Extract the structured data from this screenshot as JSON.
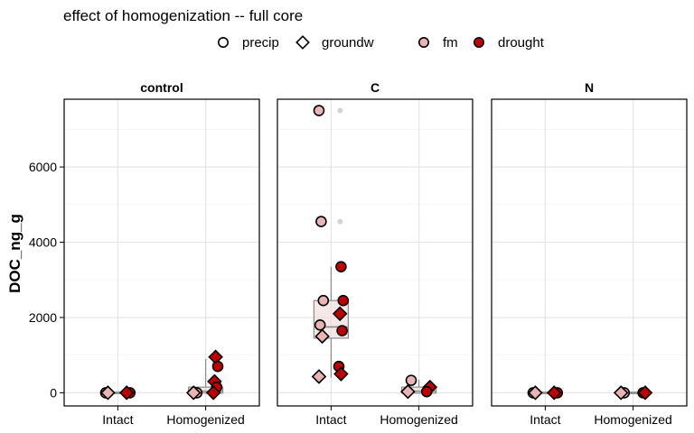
{
  "chart_data": {
    "type": "scatter",
    "title": "effect of homogenization -- full core",
    "ylabel": "DOC_ng_g",
    "xlabel": "",
    "ylim": [
      -350,
      7800
    ],
    "yticks": [
      0,
      2000,
      4000,
      6000
    ],
    "categories": [
      "Intact",
      "Homogenized"
    ],
    "panels": [
      "control",
      "C",
      "N"
    ],
    "legend": {
      "placement": "top",
      "shape": [
        "precip",
        "groundw"
      ],
      "fill": [
        "fm",
        "drought"
      ]
    },
    "colors": {
      "fm": "#e8b4b4",
      "drought": "#c00000",
      "box_fill": "#f0d8d8",
      "faint_point": "#d3d3d3"
    },
    "boxes": [
      {
        "panel": "control",
        "category": "Intact",
        "q1": -5,
        "median": 5,
        "q3": 15,
        "low": -10,
        "high": 20
      },
      {
        "panel": "control",
        "category": "Homogenized",
        "q1": -10,
        "median": 40,
        "q3": 150,
        "low": -20,
        "high": 900
      },
      {
        "panel": "C",
        "category": "Intact",
        "q1": 1450,
        "median": 1750,
        "q3": 2450,
        "low": 400,
        "high": 3350
      },
      {
        "panel": "C",
        "category": "Homogenized",
        "q1": -10,
        "median": 40,
        "q3": 150,
        "low": -20,
        "high": 350
      },
      {
        "panel": "N",
        "category": "Intact",
        "q1": -5,
        "median": 5,
        "q3": 15,
        "low": -10,
        "high": 20
      },
      {
        "panel": "N",
        "category": "Homogenized",
        "q1": -5,
        "median": 5,
        "q3": 15,
        "low": -10,
        "high": 20
      }
    ],
    "faint_points": [
      {
        "panel": "control",
        "category": "Homogenized",
        "y": 900
      },
      {
        "panel": "control",
        "category": "Homogenized",
        "y": 800
      },
      {
        "panel": "C",
        "category": "Intact",
        "y": 7500
      },
      {
        "panel": "C",
        "category": "Intact",
        "y": 4550
      }
    ],
    "points": [
      {
        "panel": "control",
        "category": "Intact",
        "moisture": "fm",
        "source": "precip",
        "y": 0
      },
      {
        "panel": "control",
        "category": "Intact",
        "moisture": "fm",
        "source": "groundw",
        "y": 0
      },
      {
        "panel": "control",
        "category": "Intact",
        "moisture": "drought",
        "source": "precip",
        "y": 0
      },
      {
        "panel": "control",
        "category": "Intact",
        "moisture": "drought",
        "source": "groundw",
        "y": 0
      },
      {
        "panel": "control",
        "category": "Homogenized",
        "moisture": "fm",
        "source": "precip",
        "y": 0
      },
      {
        "panel": "control",
        "category": "Homogenized",
        "moisture": "fm",
        "source": "groundw",
        "y": 0
      },
      {
        "panel": "control",
        "category": "Homogenized",
        "moisture": "drought",
        "source": "groundw",
        "y": 950
      },
      {
        "panel": "control",
        "category": "Homogenized",
        "moisture": "drought",
        "source": "precip",
        "y": 700
      },
      {
        "panel": "control",
        "category": "Homogenized",
        "moisture": "drought",
        "source": "groundw",
        "y": 300
      },
      {
        "panel": "control",
        "category": "Homogenized",
        "moisture": "drought",
        "source": "precip",
        "y": 150
      },
      {
        "panel": "control",
        "category": "Homogenized",
        "moisture": "drought",
        "source": "groundw",
        "y": 0
      },
      {
        "panel": "C",
        "category": "Intact",
        "moisture": "fm",
        "source": "precip",
        "y": 7500
      },
      {
        "panel": "C",
        "category": "Intact",
        "moisture": "fm",
        "source": "precip",
        "y": 4550
      },
      {
        "panel": "C",
        "category": "Intact",
        "moisture": "fm",
        "source": "precip",
        "y": 2450
      },
      {
        "panel": "C",
        "category": "Intact",
        "moisture": "fm",
        "source": "precip",
        "y": 1800
      },
      {
        "panel": "C",
        "category": "Intact",
        "moisture": "fm",
        "source": "groundw",
        "y": 1500
      },
      {
        "panel": "C",
        "category": "Intact",
        "moisture": "fm",
        "source": "groundw",
        "y": 430
      },
      {
        "panel": "C",
        "category": "Intact",
        "moisture": "drought",
        "source": "precip",
        "y": 3350
      },
      {
        "panel": "C",
        "category": "Intact",
        "moisture": "drought",
        "source": "precip",
        "y": 2450
      },
      {
        "panel": "C",
        "category": "Intact",
        "moisture": "drought",
        "source": "groundw",
        "y": 2100
      },
      {
        "panel": "C",
        "category": "Intact",
        "moisture": "drought",
        "source": "precip",
        "y": 1650
      },
      {
        "panel": "C",
        "category": "Intact",
        "moisture": "drought",
        "source": "precip",
        "y": 700
      },
      {
        "panel": "C",
        "category": "Intact",
        "moisture": "drought",
        "source": "groundw",
        "y": 500
      },
      {
        "panel": "C",
        "category": "Homogenized",
        "moisture": "fm",
        "source": "precip",
        "y": 330
      },
      {
        "panel": "C",
        "category": "Homogenized",
        "moisture": "fm",
        "source": "groundw",
        "y": 30
      },
      {
        "panel": "C",
        "category": "Homogenized",
        "moisture": "drought",
        "source": "groundw",
        "y": 150
      },
      {
        "panel": "C",
        "category": "Homogenized",
        "moisture": "drought",
        "source": "precip",
        "y": 30
      },
      {
        "panel": "N",
        "category": "Intact",
        "moisture": "fm",
        "source": "precip",
        "y": 0
      },
      {
        "panel": "N",
        "category": "Intact",
        "moisture": "fm",
        "source": "groundw",
        "y": 0
      },
      {
        "panel": "N",
        "category": "Intact",
        "moisture": "drought",
        "source": "precip",
        "y": 0
      },
      {
        "panel": "N",
        "category": "Intact",
        "moisture": "drought",
        "source": "groundw",
        "y": 0
      },
      {
        "panel": "N",
        "category": "Homogenized",
        "moisture": "fm",
        "source": "precip",
        "y": 0
      },
      {
        "panel": "N",
        "category": "Homogenized",
        "moisture": "fm",
        "source": "groundw",
        "y": 0
      },
      {
        "panel": "N",
        "category": "Homogenized",
        "moisture": "drought",
        "source": "precip",
        "y": 0
      },
      {
        "panel": "N",
        "category": "Homogenized",
        "moisture": "drought",
        "source": "groundw",
        "y": 0
      }
    ],
    "grid": true
  }
}
